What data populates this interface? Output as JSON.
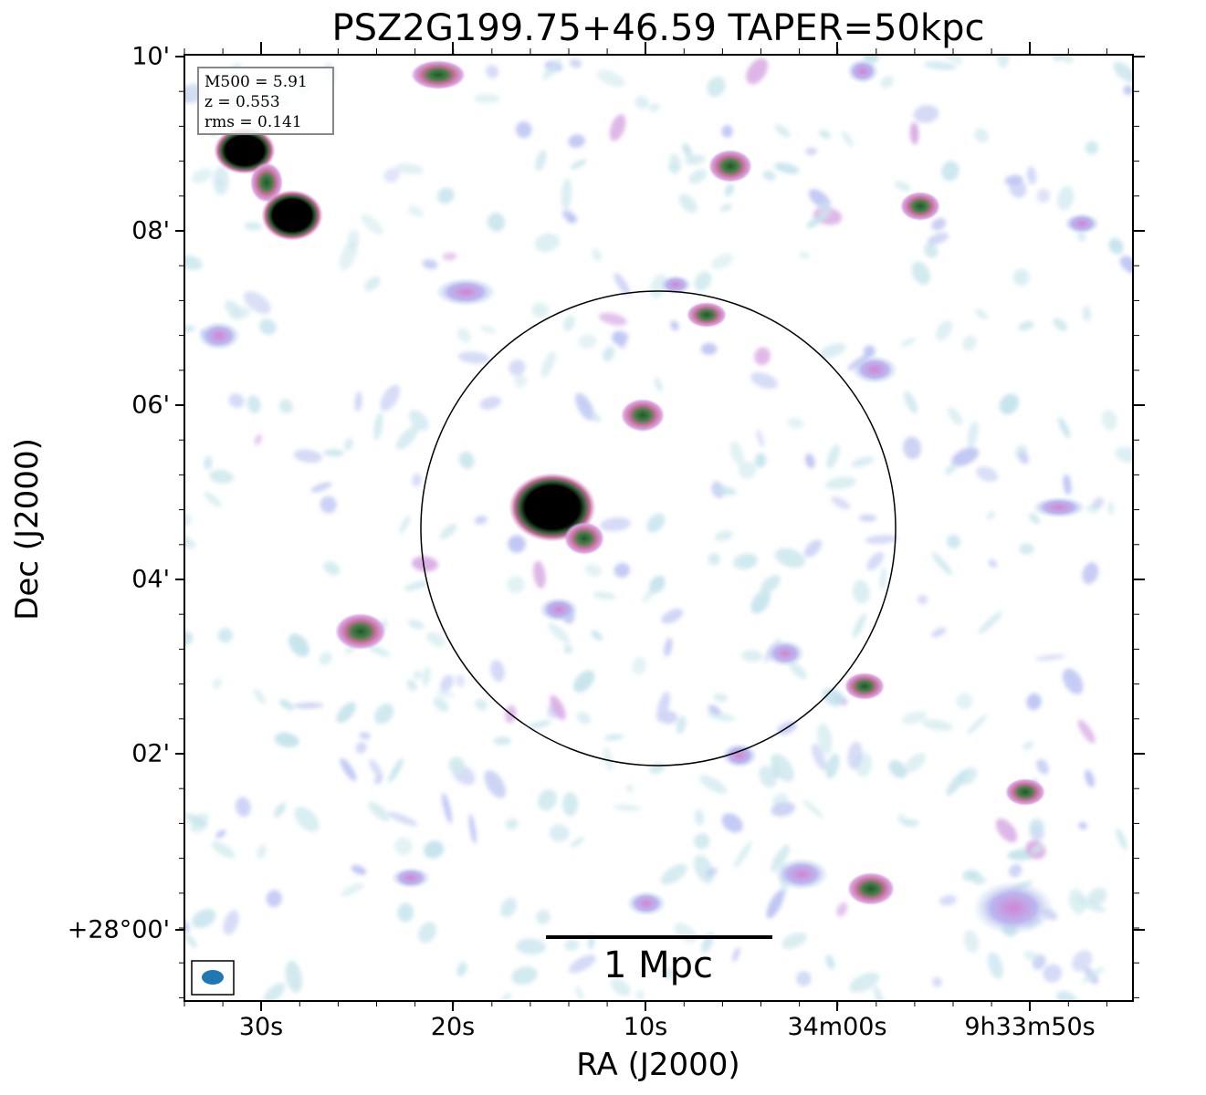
{
  "title": "PSZ2G199.75+46.59 TAPER=50kpc",
  "axes": {
    "xlabel": "RA (J2000)",
    "ylabel": "Dec (J2000)",
    "xticks": [
      "30s",
      "20s",
      "10s",
      "34m00s",
      "9h33m50s"
    ],
    "yticks": [
      "10'",
      "08'",
      "06'",
      "04'",
      "02'",
      "+28°00'"
    ]
  },
  "info_box": {
    "mass": "M500 = 5.91",
    "redshift": "z = 0.553",
    "rms": "rms = 0.141"
  },
  "scale_bar": {
    "label": "1 Mpc"
  },
  "colors": {
    "low": "#c8e6ec",
    "mid": "#b9bff0",
    "high": "#d38ad6",
    "peak": "#2c7a3a",
    "core": "#000000",
    "beam": "#1f77b4"
  }
}
